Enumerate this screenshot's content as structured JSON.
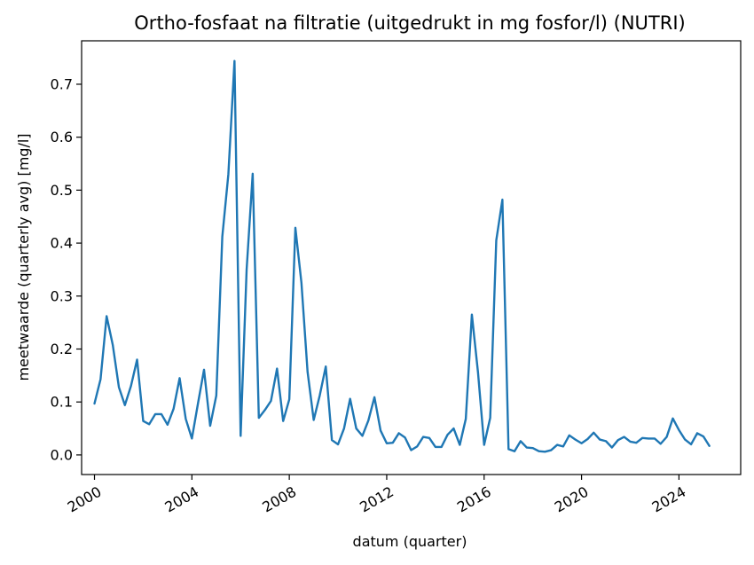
{
  "chart_data": {
    "type": "line",
    "title": "Ortho-fosfaat na filtratie (uitgedrukt in mg fosfor/l) (NUTRI)",
    "xlabel": "datum (quarter)",
    "ylabel": "meetwaarde (quarterly avg) [mg/l]",
    "xlim": [
      "1999-06-22",
      "2026-07-15"
    ],
    "ylim": [
      -0.037,
      0.782
    ],
    "x_ticks": [
      "2000",
      "2004",
      "2008",
      "2012",
      "2016",
      "2020",
      "2024"
    ],
    "y_ticks": [
      "0.0",
      "0.1",
      "0.2",
      "0.3",
      "0.4",
      "0.5",
      "0.6",
      "0.7"
    ],
    "grid": false,
    "legend": "none",
    "color": "#1f77b4",
    "series": [
      {
        "x": [
          "2000-01-01",
          "2000-04-01",
          "2000-07-01",
          "2000-10-01",
          "2001-01-01",
          "2001-04-01",
          "2001-07-01",
          "2001-10-01",
          "2002-01-01",
          "2002-04-01",
          "2002-07-01",
          "2002-10-01",
          "2003-01-01",
          "2003-04-01",
          "2003-07-01",
          "2003-10-01",
          "2004-01-01",
          "2004-04-01",
          "2004-07-01",
          "2004-10-01",
          "2005-01-01",
          "2005-04-01",
          "2005-07-01",
          "2005-10-01",
          "2006-01-01",
          "2006-04-01",
          "2006-07-01",
          "2006-10-01",
          "2007-01-01",
          "2007-04-01",
          "2007-07-01",
          "2007-10-01",
          "2008-01-01",
          "2008-04-01",
          "2008-07-01",
          "2008-10-01",
          "2009-01-01",
          "2009-04-01",
          "2009-07-01",
          "2009-10-01",
          "2010-01-01",
          "2010-04-01",
          "2010-07-01",
          "2010-10-01",
          "2011-01-01",
          "2011-04-01",
          "2011-07-01",
          "2011-10-01",
          "2012-01-01",
          "2012-04-01",
          "2012-07-01",
          "2012-10-01",
          "2013-01-01",
          "2013-04-01",
          "2013-07-01",
          "2013-10-01",
          "2014-01-01",
          "2014-04-01",
          "2014-07-01",
          "2014-10-01",
          "2015-01-01",
          "2015-04-01",
          "2015-07-01",
          "2015-10-01",
          "2016-01-01",
          "2016-04-01",
          "2016-07-01",
          "2016-10-01",
          "2017-01-01",
          "2017-04-01",
          "2017-07-01",
          "2017-10-01",
          "2018-01-01",
          "2018-04-01",
          "2018-07-01",
          "2018-10-01",
          "2019-01-01",
          "2019-04-01",
          "2019-07-01",
          "2019-10-01",
          "2020-01-01",
          "2020-04-01",
          "2020-07-01",
          "2020-10-01",
          "2021-01-01",
          "2021-04-01",
          "2021-07-01",
          "2021-10-01",
          "2022-01-01",
          "2022-04-01",
          "2022-07-01",
          "2022-10-01",
          "2023-01-01",
          "2023-04-01",
          "2023-07-01",
          "2023-10-01",
          "2024-01-01",
          "2024-04-01",
          "2024-07-01",
          "2024-10-01",
          "2025-01-01",
          "2025-04-01"
        ],
        "y": [
          0.097,
          0.143,
          0.262,
          0.208,
          0.128,
          0.094,
          0.13,
          0.18,
          0.064,
          0.058,
          0.077,
          0.077,
          0.057,
          0.087,
          0.145,
          0.068,
          0.031,
          0.097,
          0.161,
          0.055,
          0.112,
          0.412,
          0.53,
          0.744,
          0.036,
          0.35,
          0.531,
          0.07,
          0.085,
          0.102,
          0.163,
          0.064,
          0.105,
          0.429,
          0.325,
          0.157,
          0.066,
          0.112,
          0.167,
          0.028,
          0.02,
          0.05,
          0.106,
          0.05,
          0.036,
          0.065,
          0.109,
          0.046,
          0.022,
          0.023,
          0.041,
          0.033,
          0.009,
          0.016,
          0.034,
          0.032,
          0.015,
          0.015,
          0.038,
          0.05,
          0.019,
          0.068,
          0.265,
          0.156,
          0.019,
          0.07,
          0.405,
          0.482,
          0.011,
          0.007,
          0.026,
          0.014,
          0.013,
          0.007,
          0.006,
          0.009,
          0.019,
          0.016,
          0.037,
          0.029,
          0.022,
          0.03,
          0.042,
          0.029,
          0.026,
          0.014,
          0.028,
          0.034,
          0.025,
          0.023,
          0.032,
          0.031,
          0.031,
          0.021,
          0.034,
          0.069,
          0.047,
          0.029,
          0.02,
          0.041,
          0.035,
          0.017
        ]
      }
    ]
  }
}
